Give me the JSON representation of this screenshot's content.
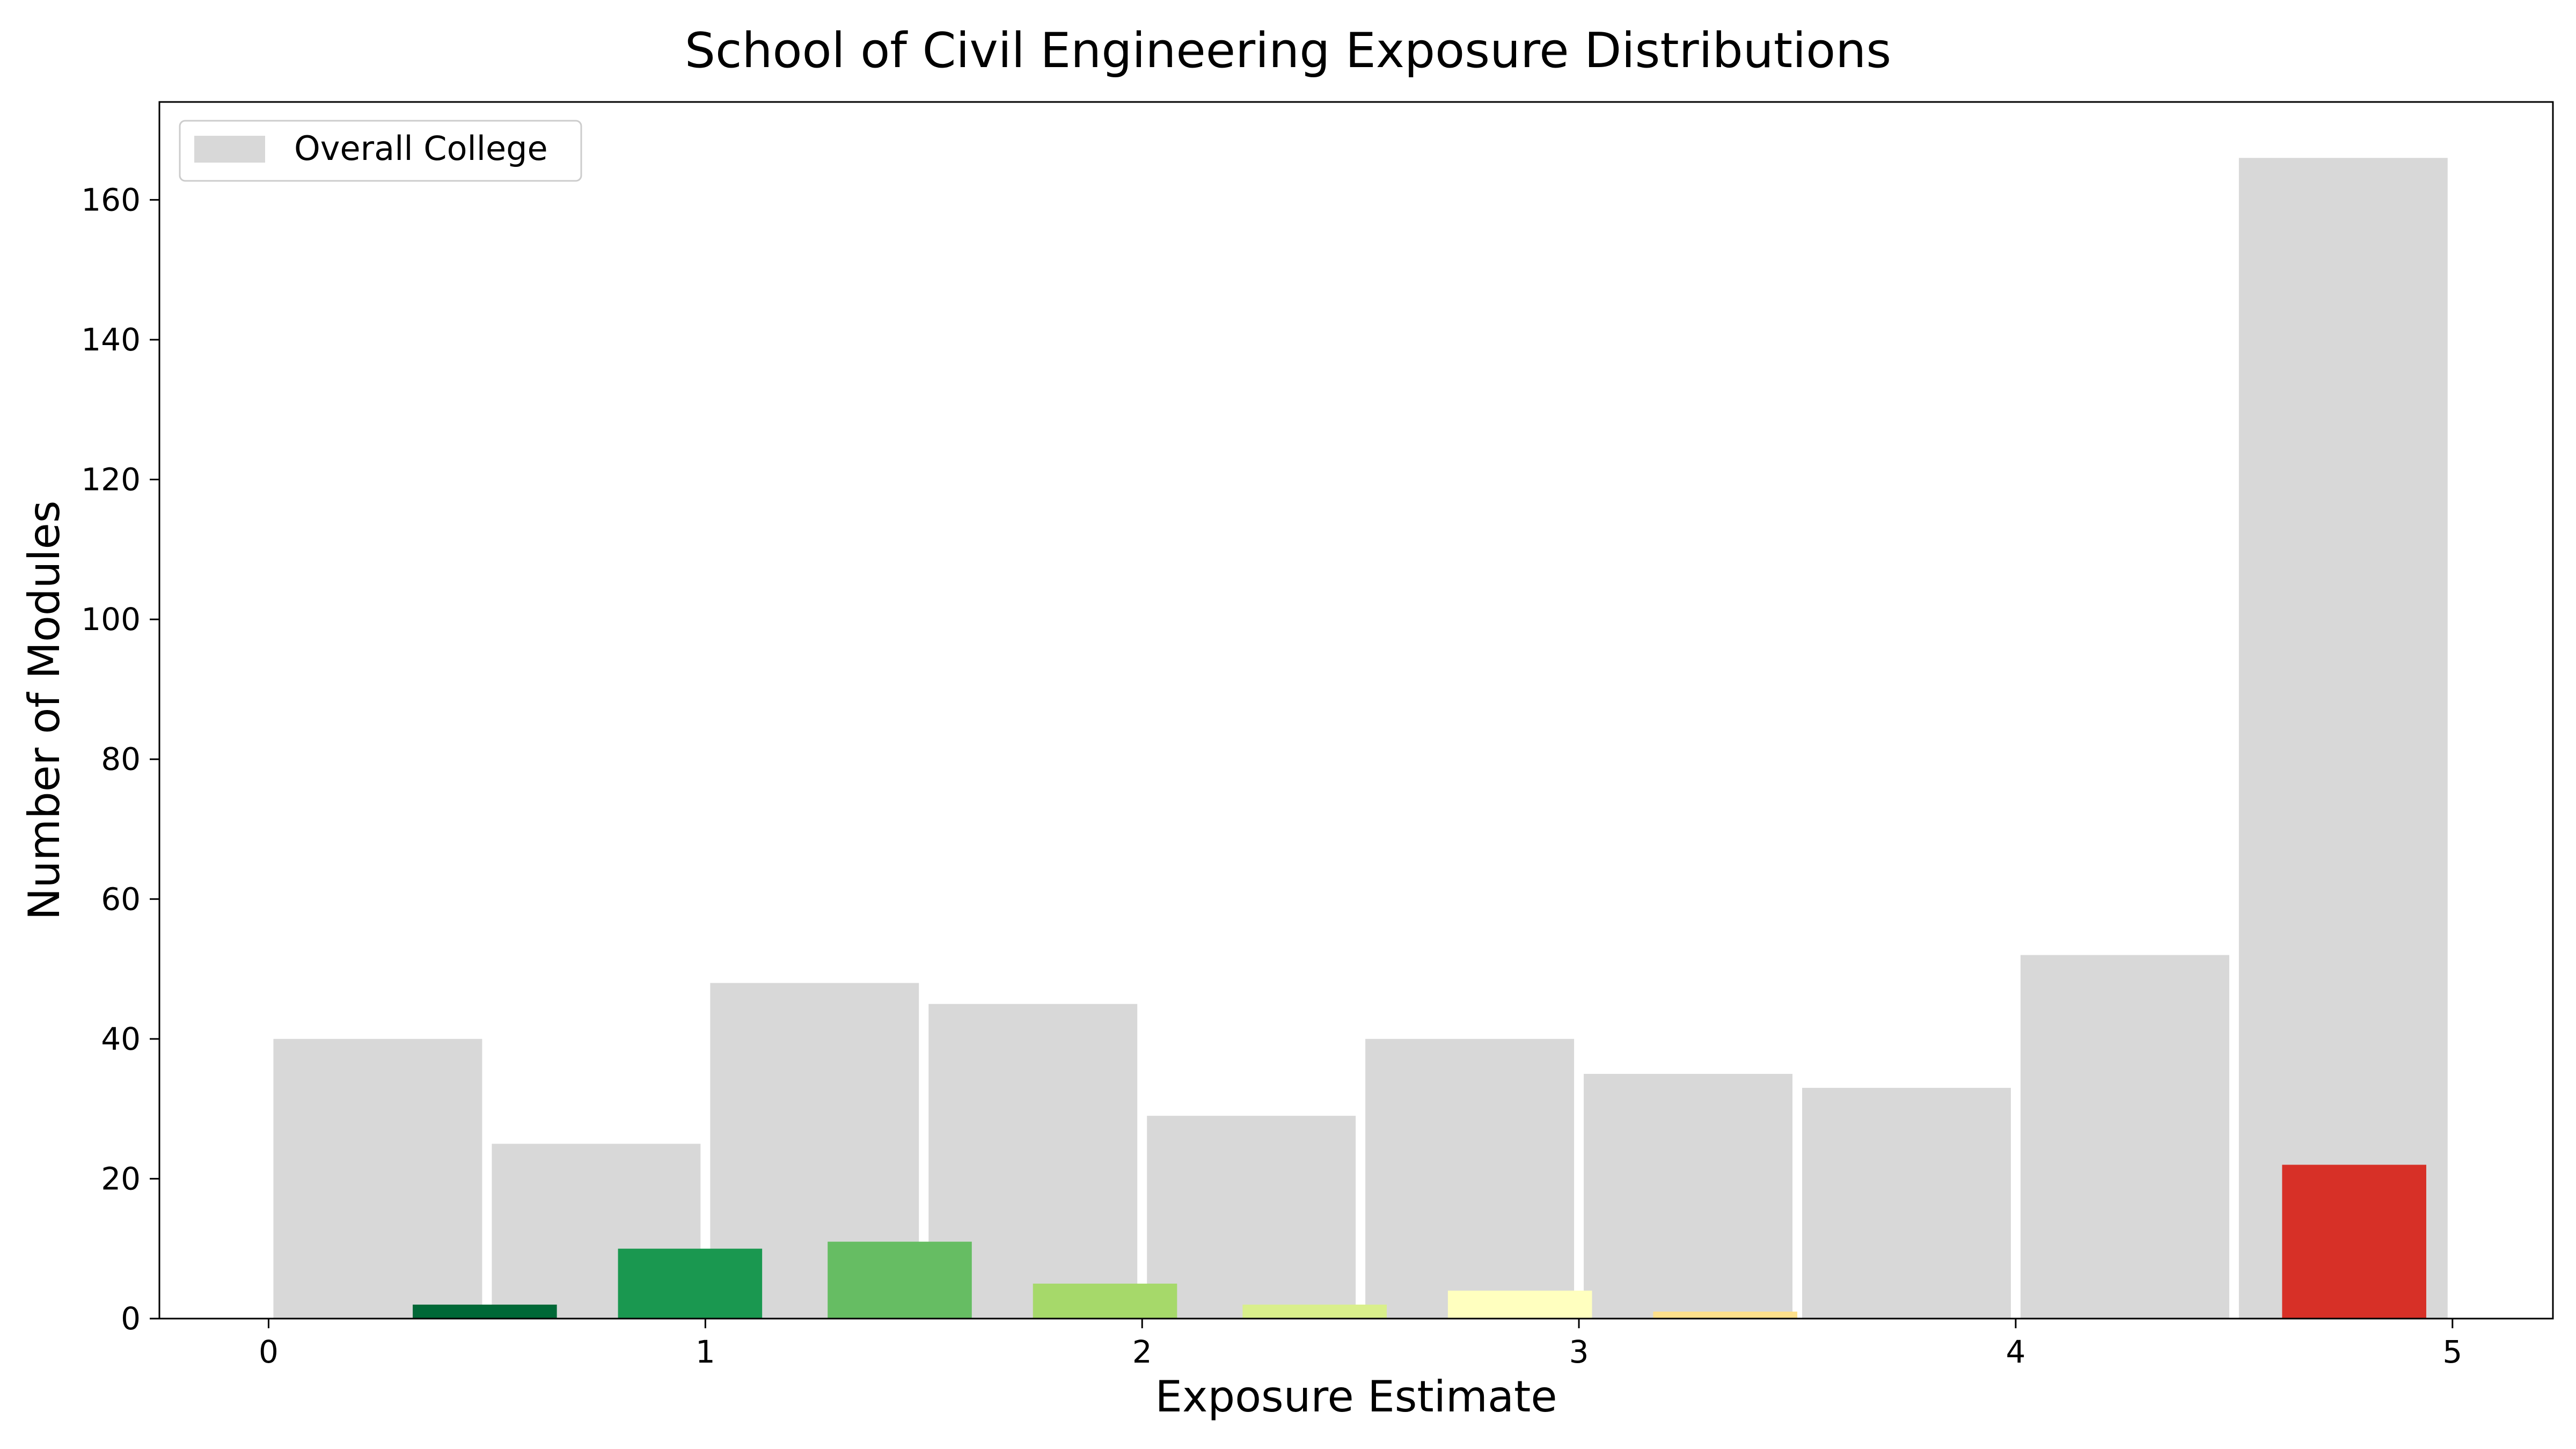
{
  "chart_data": {
    "type": "bar",
    "title": "School of Civil Engineering Exposure Distributions",
    "xlabel": "Exposure Estimate",
    "ylabel": "Number of Modules",
    "xlim": [
      -0.25,
      5.23
    ],
    "ylim": [
      0,
      174
    ],
    "xticks": [
      0,
      1,
      2,
      3,
      4,
      5
    ],
    "yticks": [
      0,
      20,
      40,
      60,
      80,
      100,
      120,
      140,
      160
    ],
    "grid": false,
    "legend": {
      "placement": "top-left",
      "entries": [
        "Overall College"
      ]
    },
    "series": [
      {
        "name": "Overall College",
        "color": "#d8d8d8",
        "bins": [
          {
            "x0": 0.0,
            "x1": 0.5,
            "value": 40
          },
          {
            "x0": 0.5,
            "x1": 1.0,
            "value": 25
          },
          {
            "x0": 1.0,
            "x1": 1.5,
            "value": 48
          },
          {
            "x0": 1.5,
            "x1": 2.0,
            "value": 45
          },
          {
            "x0": 2.0,
            "x1": 2.5,
            "value": 29
          },
          {
            "x0": 2.5,
            "x1": 3.0,
            "value": 40
          },
          {
            "x0": 3.0,
            "x1": 3.5,
            "value": 35
          },
          {
            "x0": 3.5,
            "x1": 4.0,
            "value": 33
          },
          {
            "x0": 4.0,
            "x1": 4.5,
            "value": 52
          },
          {
            "x0": 4.5,
            "x1": 5.0,
            "value": 166
          }
        ]
      },
      {
        "bins": [
          {
            "x0": 0.33,
            "x1": 0.66,
            "value": 2,
            "color": "#006837"
          },
          {
            "x0": 0.8,
            "x1": 1.13,
            "value": 10,
            "color": "#1a9850"
          },
          {
            "x0": 1.28,
            "x1": 1.61,
            "value": 11,
            "color": "#66bd63"
          },
          {
            "x0": 1.75,
            "x1": 2.08,
            "value": 5,
            "color": "#a6d96a"
          },
          {
            "x0": 2.23,
            "x1": 2.56,
            "value": 2,
            "color": "#d9ef8b"
          },
          {
            "x0": 2.7,
            "x1": 3.03,
            "value": 4,
            "color": "#ffffbf"
          },
          {
            "x0": 3.17,
            "x1": 3.5,
            "value": 1,
            "color": "#fee08b"
          },
          {
            "x0": 4.61,
            "x1": 4.94,
            "value": 22,
            "color": "#d73027"
          }
        ]
      }
    ]
  }
}
